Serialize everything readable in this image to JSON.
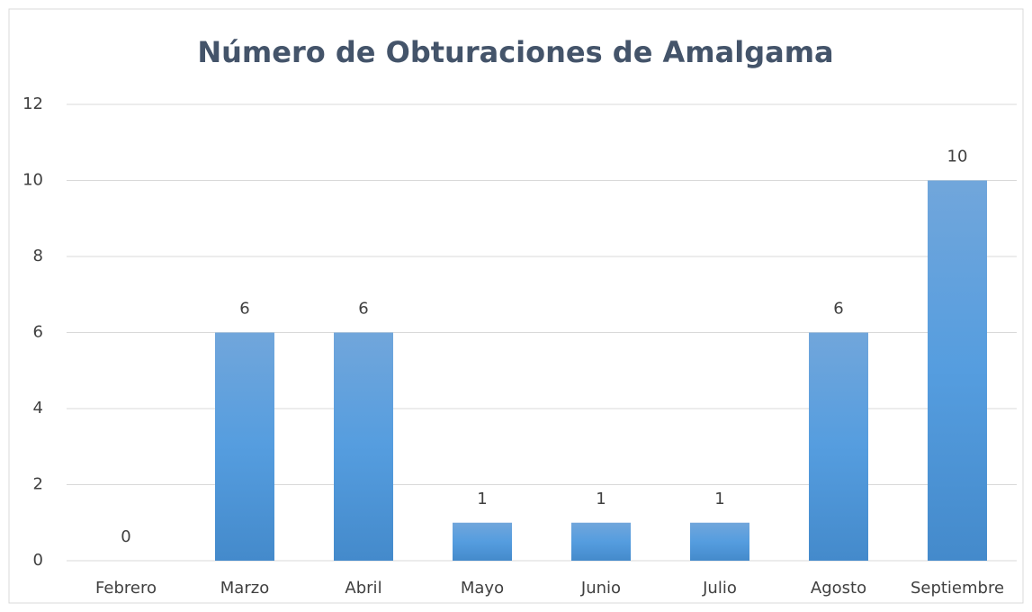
{
  "chart_data": {
    "type": "bar",
    "title": "Número de Obturaciones de Amalgama",
    "categories": [
      "Febrero",
      "Marzo",
      "Abril",
      "Mayo",
      "Junio",
      "Julio",
      "Agosto",
      "Septiembre"
    ],
    "values": [
      0,
      6,
      6,
      1,
      1,
      1,
      6,
      10
    ],
    "color": "#5b9bd5",
    "ylim": [
      0,
      12
    ],
    "yticks": [
      0,
      2,
      4,
      6,
      8,
      10,
      12
    ],
    "grid": true
  }
}
